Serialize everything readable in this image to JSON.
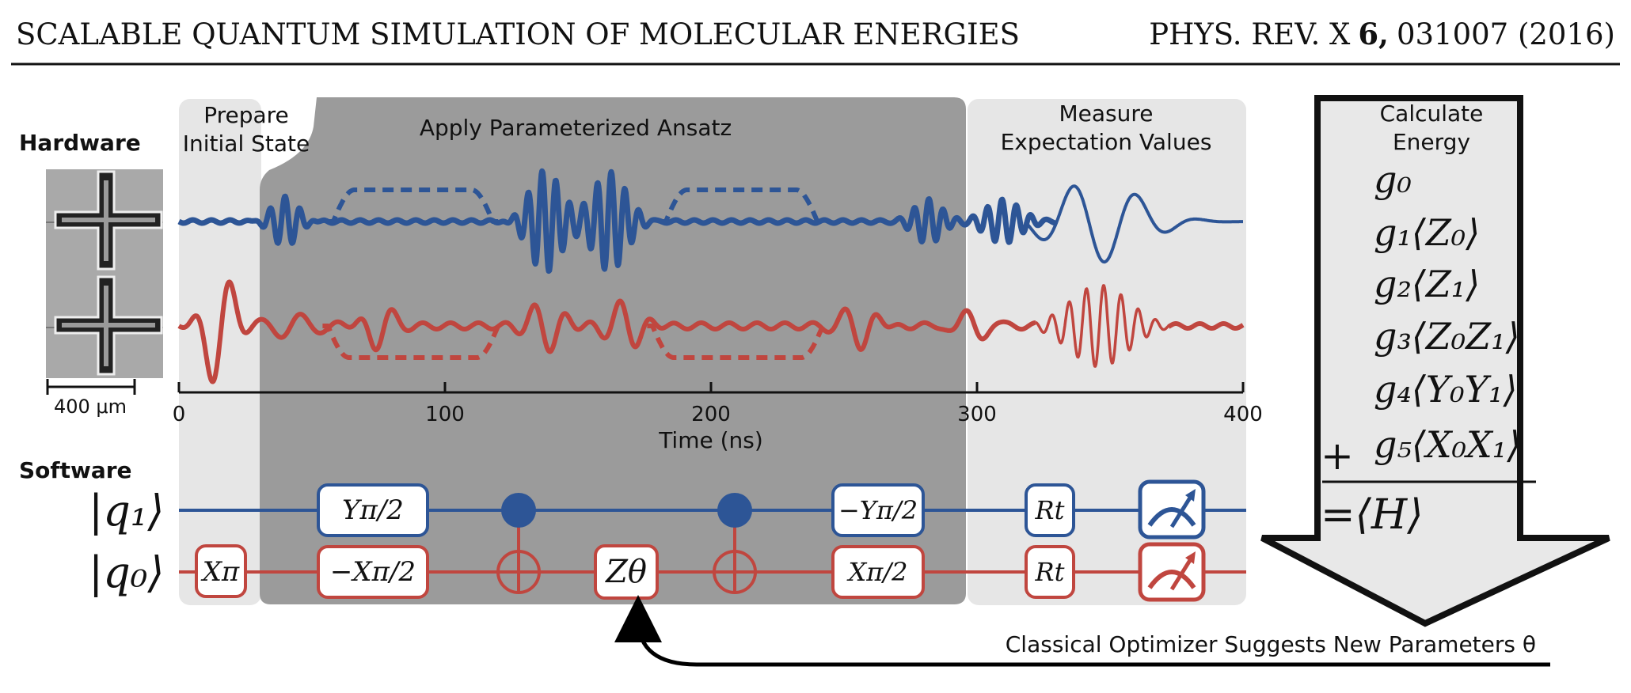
{
  "header": {
    "left_title": "SCALABLE QUANTUM SIMULATION OF MOLECULAR ENERGIES",
    "journal": "PHYS. REV. X",
    "volume": "6,",
    "citation": "031007 (2016)"
  },
  "figure": {
    "labels": {
      "hardware": "Hardware",
      "software": "Software",
      "scale_bar": "400 μm"
    },
    "stages": {
      "prepare_line1": "Prepare",
      "prepare_line2": "Initial State",
      "ansatz": "Apply Parameterized Ansatz",
      "measure_line1": "Measure",
      "measure_line2": "Expectation Values",
      "energy_line1": "Calculate",
      "energy_line2": "Energy"
    },
    "axis": {
      "xlabel": "Time (ns)",
      "xlim": [
        0,
        400
      ],
      "ticks": [
        "0",
        "100",
        "200",
        "300",
        "400"
      ]
    },
    "circuit": {
      "qubit1": "|q₁⟩",
      "qubit0": "|q₀⟩",
      "gate_x_pi": "Xπ",
      "gate_y_pi2": "Yπ/2",
      "gate_minus_x_pi2": "−Xπ/2",
      "gate_z_theta": "Zθ",
      "gate_minus_y_pi2": "−Yπ/2",
      "gate_x_pi2": "Xπ/2",
      "gate_rt": "Rt"
    },
    "energy_terms": [
      "g₀",
      "g₁⟨Z₀⟩",
      "g₂⟨Z₁⟩",
      "g₃⟨Z₀Z₁⟩",
      "g₄⟨Y₀Y₁⟩",
      "g₅⟨X₀X₁⟩"
    ],
    "plus_sign": "+",
    "energy_result": "=⟨H⟩",
    "feedback_label": "Classical Optimizer Suggests New Parameters θ",
    "colors": {
      "blue": "#2d5596",
      "red": "#c0463f",
      "light_panel": "#e6e6e6",
      "dark_panel": "#9b9b9b"
    }
  }
}
